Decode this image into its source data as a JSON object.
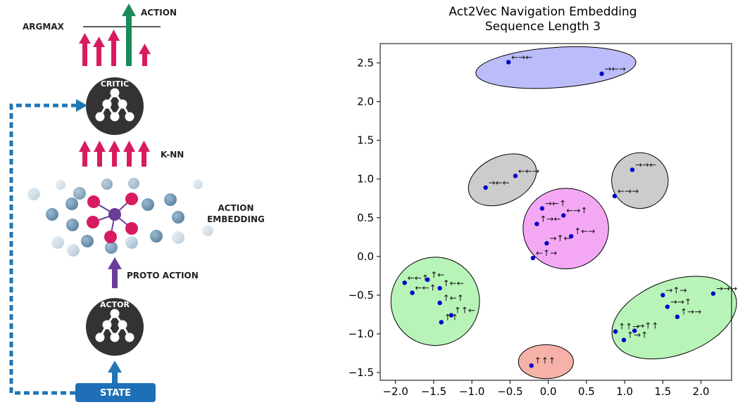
{
  "diagram": {
    "labels": {
      "action": "ACTION",
      "argmax": "ARGMAX",
      "critic": "CRITIC",
      "knn": "K-NN",
      "action_embedding_line1": "ACTION",
      "action_embedding_line2": "EMBEDDING",
      "proto_action": "PROTO ACTION",
      "actor": "ACTOR",
      "state": "STATE"
    },
    "colors": {
      "arrow_pink": "#d81b60",
      "arrow_green": "#1a8a5a",
      "arrow_purple": "#6a3d9a",
      "arrow_blue": "#1f77b4",
      "node_dark": "#333333",
      "state_box": "#1f6fb8",
      "embed_pink": "#d81b60",
      "embed_purple": "#6a3d9a",
      "embed_blue": "#6f93ad"
    },
    "icons": [
      "network-icon",
      "arrow-up-icon",
      "dashed-loop-arrow-icon"
    ]
  },
  "chart_data": {
    "type": "scatter",
    "title": "Act2Vec Navigation Embedding",
    "subtitle": "Sequence Length 3",
    "xlabel": "",
    "ylabel": "",
    "xlim": [
      -2.2,
      2.4
    ],
    "ylim": [
      -1.6,
      2.75
    ],
    "xticks": [
      "−2.0",
      "−1.5",
      "−1.0",
      "−0.5",
      "0.0",
      "0.5",
      "1.0",
      "1.5",
      "2.0"
    ],
    "yticks": [
      "−1.5",
      "−1.0",
      "−0.5",
      "0.0",
      "0.5",
      "1.0",
      "1.5",
      "2.0",
      "2.5"
    ],
    "grid": false,
    "point_color": "#0000cc",
    "clusters": [
      {
        "color": "#bcbcfa",
        "cx": 0.1,
        "cy": 2.44,
        "rx": 1.05,
        "ry": 0.26,
        "rot": -4
      },
      {
        "color": "#cccccc",
        "cx": -0.6,
        "cy": 0.99,
        "rx": 0.47,
        "ry": 0.3,
        "rot": -25
      },
      {
        "color": "#cccccc",
        "cx": 1.2,
        "cy": 0.98,
        "rx": 0.37,
        "ry": 0.36,
        "rot": 0
      },
      {
        "color": "#f4a8f4",
        "cx": 0.23,
        "cy": 0.36,
        "rx": 0.56,
        "ry": 0.52,
        "rot": 0
      },
      {
        "color": "#b8f4b8",
        "cx": -1.48,
        "cy": -0.58,
        "rx": 0.58,
        "ry": 0.57,
        "rot": -25
      },
      {
        "color": "#b8f4b8",
        "cx": 1.65,
        "cy": -0.79,
        "rx": 0.85,
        "ry": 0.48,
        "rot": -20
      },
      {
        "color": "#f6b1a8",
        "cx": -0.03,
        "cy": -1.36,
        "rx": 0.36,
        "ry": 0.22,
        "rot": 0
      }
    ],
    "points": [
      {
        "x": -0.52,
        "y": 2.51,
        "label": "←→←"
      },
      {
        "x": 0.7,
        "y": 2.36,
        "label": "→←→"
      },
      {
        "x": -0.43,
        "y": 1.04,
        "label": "←←→"
      },
      {
        "x": -0.82,
        "y": 0.89,
        "label": "→←←"
      },
      {
        "x": 1.1,
        "y": 1.12,
        "label": "→→←"
      },
      {
        "x": 0.87,
        "y": 0.78,
        "label": "←→→"
      },
      {
        "x": -0.08,
        "y": 0.62,
        "label": "→←↑"
      },
      {
        "x": 0.2,
        "y": 0.53,
        "label": "←→↑"
      },
      {
        "x": -0.15,
        "y": 0.42,
        "label": "↑→←"
      },
      {
        "x": 0.3,
        "y": 0.26,
        "label": "↑←→"
      },
      {
        "x": -0.02,
        "y": 0.17,
        "label": "→↑←"
      },
      {
        "x": -0.2,
        "y": -0.02,
        "label": "←↑→"
      },
      {
        "x": -1.88,
        "y": -0.34,
        "label": "←←↑"
      },
      {
        "x": -1.58,
        "y": -0.3,
        "label": "↑←"
      },
      {
        "x": -1.78,
        "y": -0.47,
        "label": "←←↑"
      },
      {
        "x": -1.42,
        "y": -0.41,
        "label": "↑←←"
      },
      {
        "x": -1.42,
        "y": -0.6,
        "label": "↑←↑"
      },
      {
        "x": -1.27,
        "y": -0.76,
        "label": "↑↑←"
      },
      {
        "x": -1.4,
        "y": -0.85,
        "label": "↑↑"
      },
      {
        "x": 1.5,
        "y": -0.5,
        "label": "→↑→"
      },
      {
        "x": 2.16,
        "y": -0.48,
        "label": "→→→"
      },
      {
        "x": 1.56,
        "y": -0.65,
        "label": "→→↑"
      },
      {
        "x": 1.69,
        "y": -0.78,
        "label": "↑→→"
      },
      {
        "x": 0.88,
        "y": -0.97,
        "label": "↑↑→"
      },
      {
        "x": 1.13,
        "y": -0.96,
        "label": "→↑↑"
      },
      {
        "x": 0.99,
        "y": -1.08,
        "label": "↑→↑"
      },
      {
        "x": -0.22,
        "y": -1.41,
        "label": "↑↑↑"
      }
    ]
  }
}
